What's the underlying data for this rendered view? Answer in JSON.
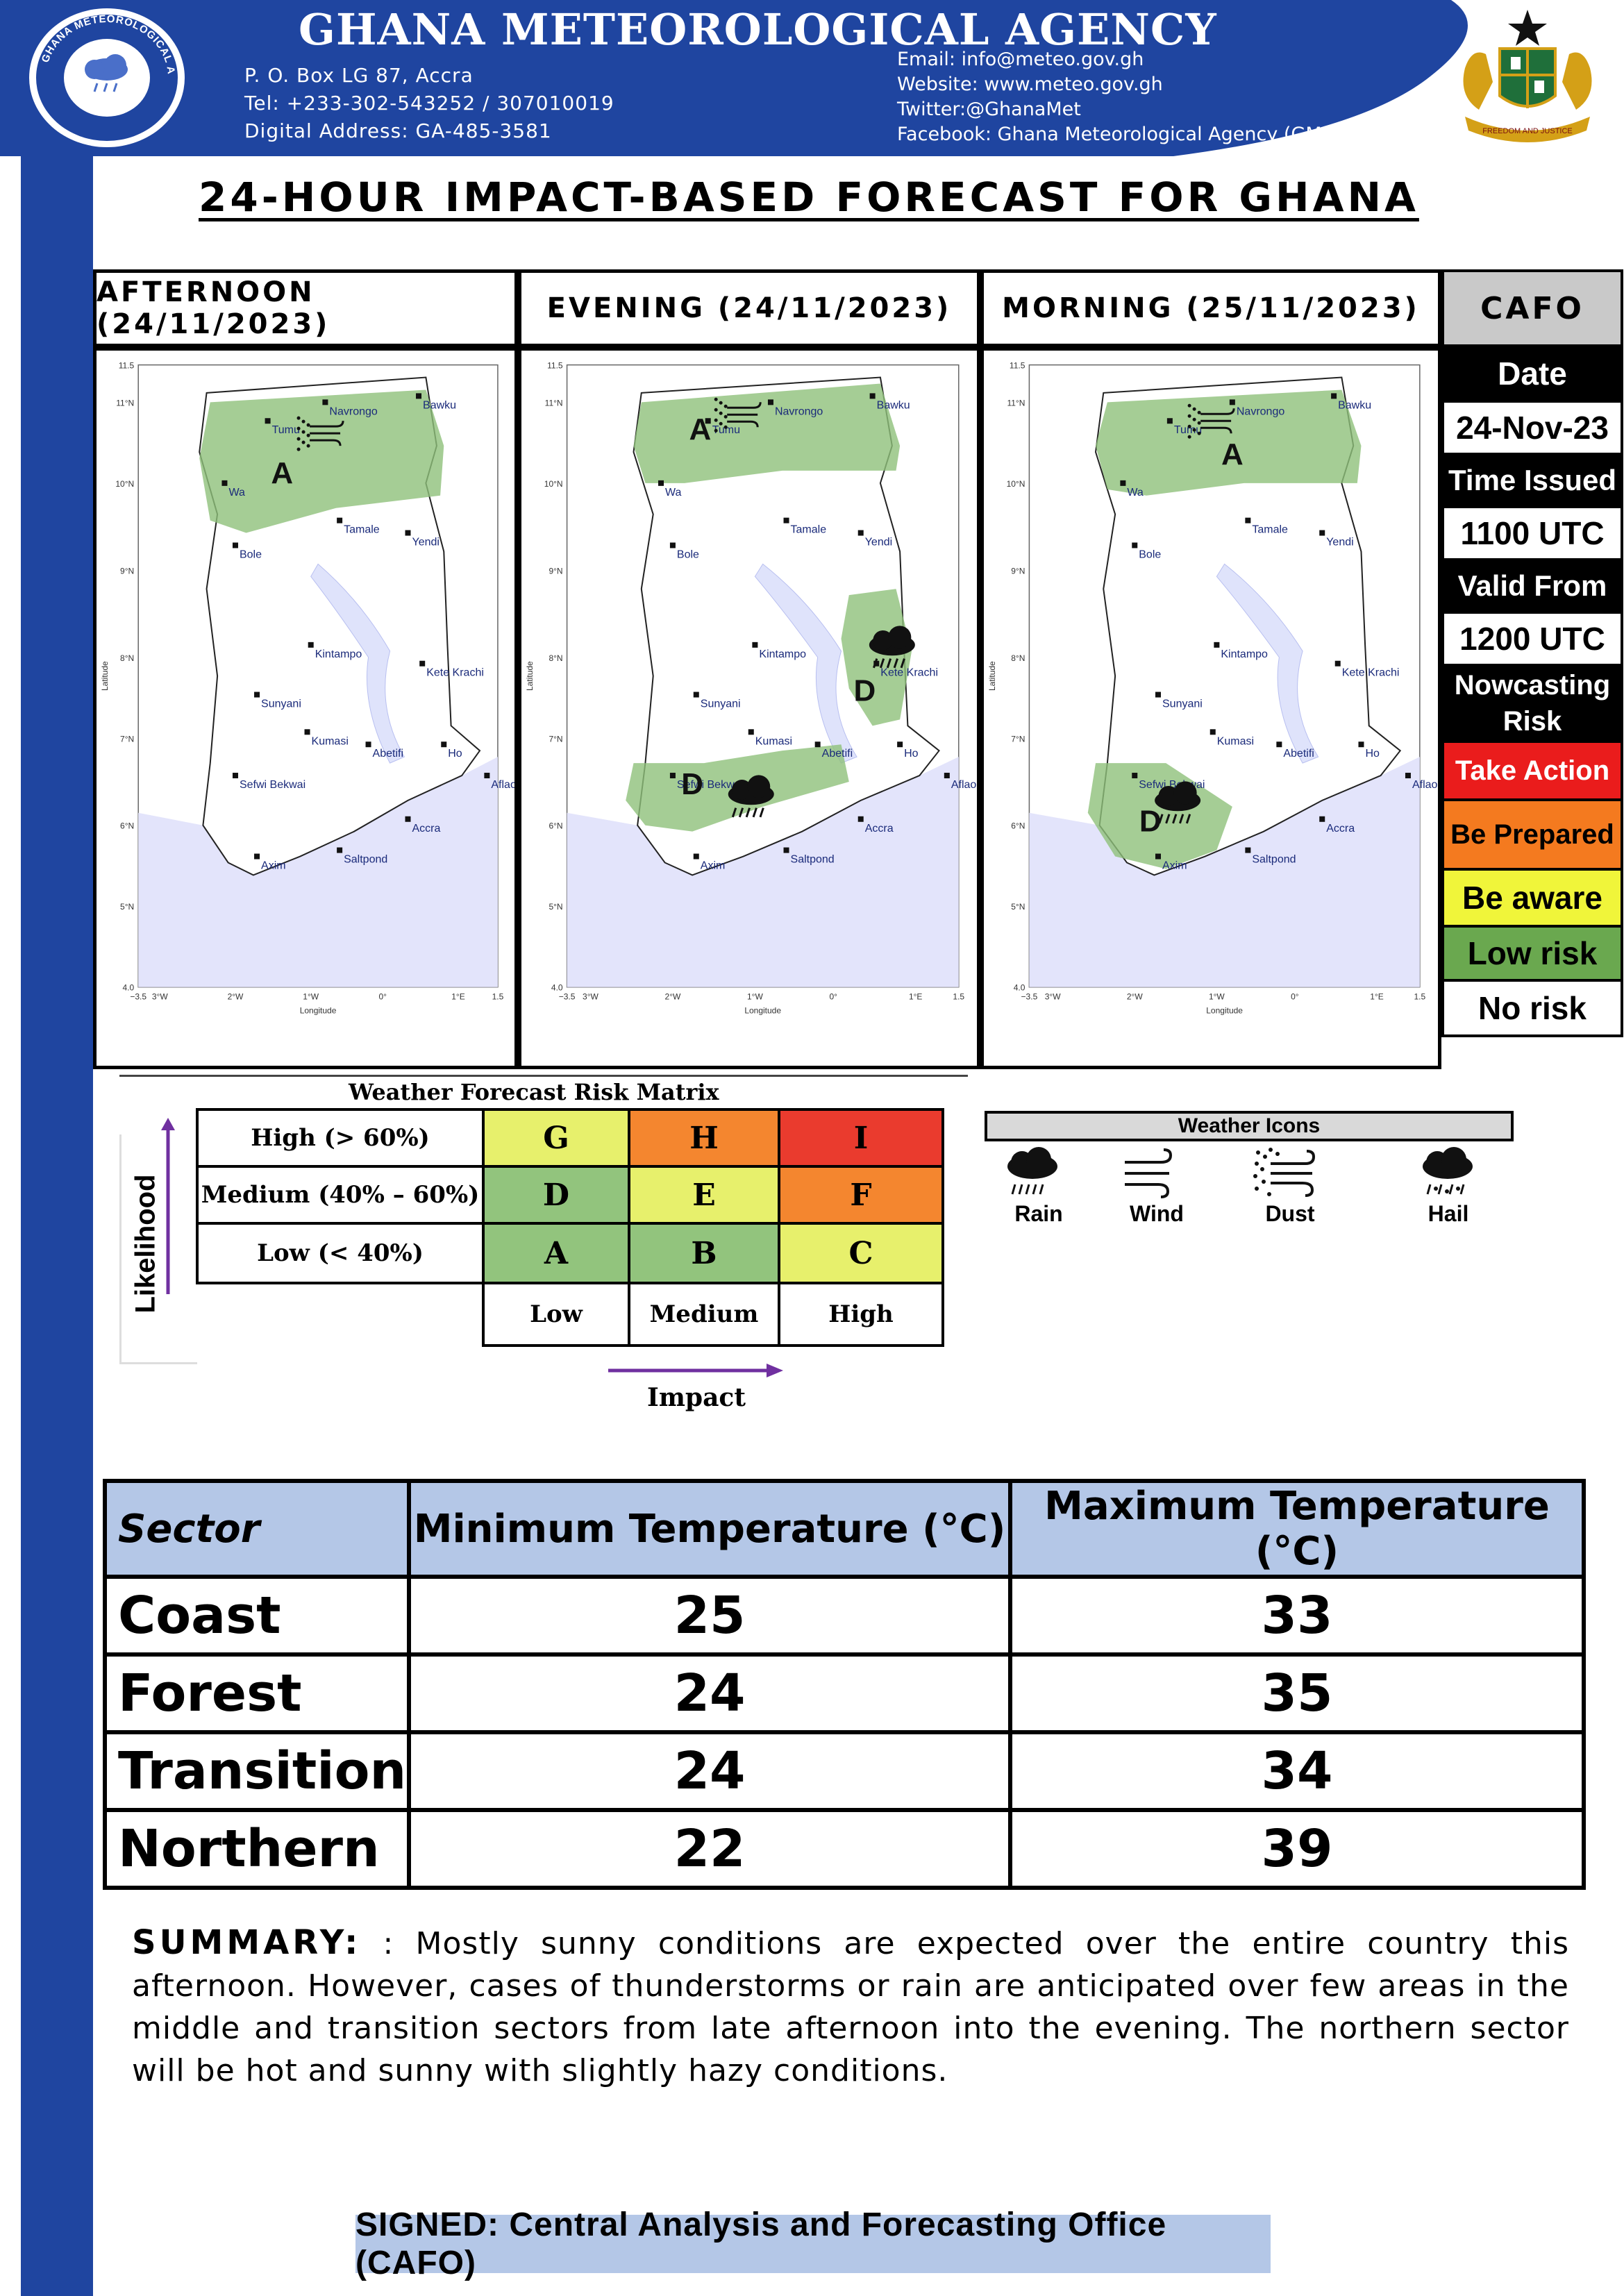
{
  "header": {
    "agency_name": "GHANA METEOROLOGICAL AGENCY",
    "logo_text": "GHANA METEOROLOGICAL AGENCY",
    "address": "P. O. Box  LG 87, Accra",
    "tel": "Tel: +233-302-543252 / 307010019",
    "digital_address": "Digital Address: GA-485-3581",
    "email": "Email: info@meteo.gov.gh",
    "website": "Website: www.meteo.gov.gh",
    "twitter": "Twitter:@GhanaMet",
    "facebook": "Facebook: Ghana Meteorological Agency (GMet)",
    "coat_of_arms_text": "FREEDOM AND JUSTICE"
  },
  "title": "24-HOUR IMPACT-BASED FORECAST FOR GHANA",
  "periods": [
    {
      "label": "AFTERNOON (24/11/2023)"
    },
    {
      "label": "EVENING (24/11/2023)"
    },
    {
      "label": "MORNING (25/11/2023)"
    }
  ],
  "maps": {
    "cities": [
      "Bawku",
      "Navrongo",
      "Tumu",
      "Wa",
      "Tamale",
      "Yendi",
      "Bole",
      "Kintampo",
      "Kete Krachi",
      "Sunyani",
      "Kumasi",
      "Abetifi",
      "Ho",
      "Sefwi Bekwai",
      "Aflao",
      "Accra",
      "Axim",
      "Saltpond"
    ],
    "y_ticks": [
      "11.5",
      "11°N",
      "10°N",
      "9°N",
      "8°N",
      "7°N",
      "6°N",
      "5°N",
      "4.0"
    ],
    "x_ticks": [
      "−3.5",
      "3°W",
      "2°W",
      "1°W",
      "0°",
      "1°E",
      "1.5"
    ],
    "xlabel": "Longitude",
    "ylabel": "Latitude",
    "afternoon": {
      "zones": [
        {
          "code": "A",
          "icon": "dust"
        }
      ]
    },
    "evening": {
      "zones": [
        {
          "code": "A",
          "icon": "dust"
        },
        {
          "code": "D",
          "icon": "rain"
        },
        {
          "code": "D",
          "icon": "rain"
        }
      ]
    },
    "morning": {
      "zones": [
        {
          "code": "A",
          "icon": "dust"
        },
        {
          "code": "D",
          "icon": "rain"
        }
      ]
    }
  },
  "cafo": {
    "header": "CAFO",
    "date_label": "Date",
    "date_value": "24-Nov-23",
    "time_issued_label": "Time Issued",
    "time_issued_value": "1100 UTC",
    "valid_from_label": "Valid From",
    "valid_from_value": "1200 UTC",
    "nowcasting_label": "Nowcasting Risk",
    "take_action": "Take Action",
    "be_prepared": "Be Prepared",
    "be_aware": "Be aware",
    "low_risk": "Low risk",
    "no_risk": "No risk"
  },
  "risk_matrix": {
    "title": "Weather Forecast Risk Matrix",
    "likelihood_label": "Likelihood",
    "impact_label": "Impact",
    "rows": [
      {
        "label": "High (> 60%)",
        "cells": [
          "G",
          "H",
          "I"
        ]
      },
      {
        "label": "Medium (40% – 60%)",
        "cells": [
          "D",
          "E",
          "F"
        ]
      },
      {
        "label": "Low (< 40%)",
        "cells": [
          "A",
          "B",
          "C"
        ]
      }
    ],
    "columns": [
      "Low",
      "Medium",
      "High"
    ],
    "colors": {
      "green": "#92c47d",
      "yellow": "#e7f06c",
      "orange": "#f4862f",
      "red": "#ea3b2e"
    }
  },
  "weather_icons": {
    "title": "Weather Icons",
    "items": [
      {
        "label": "Rain",
        "icon": "rain-icon"
      },
      {
        "label": "Wind",
        "icon": "wind-icon"
      },
      {
        "label": "Dust",
        "icon": "dust-icon"
      },
      {
        "label": "Hail",
        "icon": "hail-icon"
      }
    ]
  },
  "temperature_table": {
    "headers": [
      "Sector",
      "Minimum Temperature (°C)",
      "Maximum Temperature (°C)"
    ],
    "rows": [
      {
        "sector": "Coast",
        "min": "25",
        "max": "33"
      },
      {
        "sector": "Forest",
        "min": "24",
        "max": "35"
      },
      {
        "sector": "Transition",
        "min": "24",
        "max": "34"
      },
      {
        "sector": "Northern",
        "min": "22",
        "max": "39"
      }
    ]
  },
  "summary": {
    "label": "SUMMARY:",
    "text": " : Mostly sunny conditions are expected over the entire country this afternoon. However, cases of thunderstorms or rain are anticipated over few areas in the middle and transition sectors from late afternoon into the evening. The northern sector will be hot and sunny with slightly hazy conditions."
  },
  "signed": "SIGNED: Central Analysis and Forecasting Office (CAFO)"
}
